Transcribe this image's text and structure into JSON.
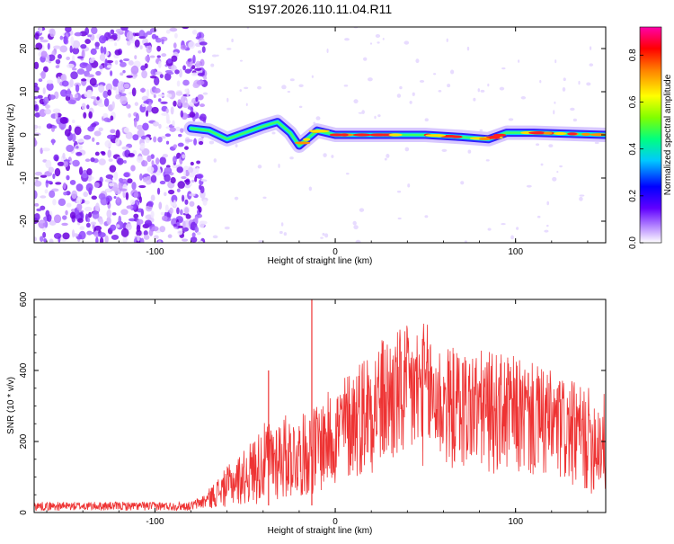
{
  "title": "S197.2026.110.11.04.R11",
  "chart_data": [
    {
      "type": "heatmap",
      "xlabel": "Height of straight line (km)",
      "ylabel": "Frequency (Hz)",
      "xlim": [
        -167,
        150
      ],
      "ylim": [
        -25,
        25
      ],
      "xticks": [
        -100,
        0,
        100
      ],
      "yticks": [
        -20,
        -10,
        0,
        10,
        20
      ],
      "colorbar": {
        "label": "Normalized spectral amplitude",
        "range": [
          0,
          0.92
        ],
        "ticks": [
          0.0,
          0.2,
          0.4,
          0.6,
          0.8
        ],
        "colormap": [
          "#ffffff",
          "#8000ff",
          "#0000ff",
          "#00c0ff",
          "#00ff80",
          "#80ff00",
          "#ffff00",
          "#ff8000",
          "#ff0000",
          "#ff00aa"
        ]
      },
      "noise_region_x": [
        -167,
        -80
      ],
      "ridge": [
        {
          "x": -80,
          "f": 1.5
        },
        {
          "x": -70,
          "f": 1.0
        },
        {
          "x": -60,
          "f": -1.0
        },
        {
          "x": -50,
          "f": 0.5
        },
        {
          "x": -40,
          "f": 2.0
        },
        {
          "x": -32,
          "f": 3.0
        },
        {
          "x": -25,
          "f": 0.5
        },
        {
          "x": -20,
          "f": -2.5
        },
        {
          "x": -10,
          "f": 1.0
        },
        {
          "x": 0,
          "f": 0.0
        },
        {
          "x": 20,
          "f": 0.0
        },
        {
          "x": 50,
          "f": 0.0
        },
        {
          "x": 70,
          "f": -0.5
        },
        {
          "x": 85,
          "f": -1.0
        },
        {
          "x": 95,
          "f": 0.5
        },
        {
          "x": 110,
          "f": 0.5
        },
        {
          "x": 150,
          "f": 0.0
        }
      ]
    },
    {
      "type": "line",
      "xlabel": "Height of straight line (km)",
      "ylabel": "SNR (10 * v/v)",
      "xlim": [
        -167,
        150
      ],
      "ylim": [
        0,
        600
      ],
      "xticks": [
        -100,
        0,
        100
      ],
      "yticks": [
        0,
        200,
        400,
        600
      ],
      "color": "#ee3333",
      "envelope": [
        {
          "x": -167,
          "lo": 5,
          "hi": 30
        },
        {
          "x": -80,
          "lo": 5,
          "hi": 30
        },
        {
          "x": -72,
          "lo": 10,
          "hi": 55
        },
        {
          "x": -60,
          "lo": 15,
          "hi": 130
        },
        {
          "x": -50,
          "lo": 20,
          "hi": 180
        },
        {
          "x": -40,
          "lo": 25,
          "hi": 250
        },
        {
          "x": -30,
          "lo": 30,
          "hi": 280
        },
        {
          "x": -20,
          "lo": 40,
          "hi": 270
        },
        {
          "x": -10,
          "lo": 50,
          "hi": 310
        },
        {
          "x": 0,
          "lo": 70,
          "hi": 360
        },
        {
          "x": 10,
          "lo": 90,
          "hi": 420
        },
        {
          "x": 20,
          "lo": 110,
          "hi": 480
        },
        {
          "x": 35,
          "lo": 120,
          "hi": 520
        },
        {
          "x": 50,
          "lo": 130,
          "hi": 540
        },
        {
          "x": 60,
          "lo": 120,
          "hi": 470
        },
        {
          "x": 80,
          "lo": 110,
          "hi": 460
        },
        {
          "x": 100,
          "lo": 100,
          "hi": 440
        },
        {
          "x": 120,
          "lo": 80,
          "hi": 400
        },
        {
          "x": 135,
          "lo": 60,
          "hi": 360
        },
        {
          "x": 150,
          "lo": 40,
          "hi": 340
        }
      ],
      "spikes": [
        {
          "x": -37,
          "y": 400
        },
        {
          "x": -13,
          "y": 600
        }
      ]
    }
  ]
}
